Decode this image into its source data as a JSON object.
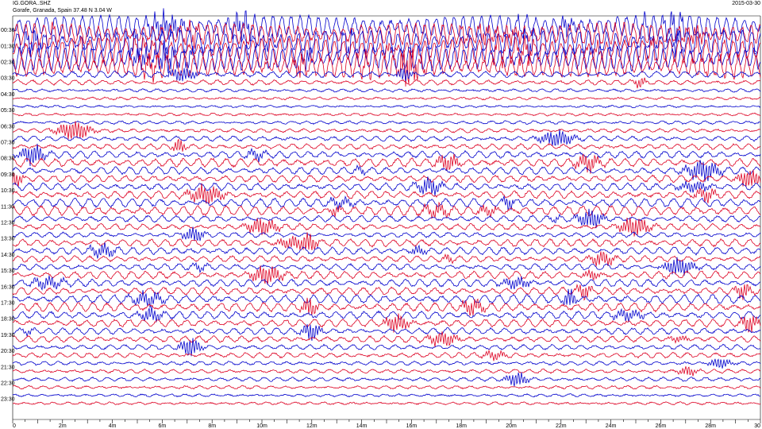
{
  "header": {
    "station_code": "IG.GORA..SHZ",
    "location": "Gorafe, Granada, Spain  37.48 N 3.04 W",
    "date": "2015-03-30"
  },
  "chart_data": {
    "type": "line",
    "title": "",
    "xlabel": "",
    "ylabel": "",
    "xlim": [
      0,
      30
    ],
    "x_unit": "minutes",
    "x_ticks": [
      "0",
      "2m",
      "4m",
      "6m",
      "8m",
      "10m",
      "12m",
      "14m",
      "16m",
      "18m",
      "20m",
      "22m",
      "24m",
      "26m",
      "28m",
      "30"
    ],
    "row_labels": [
      "00:30",
      "01:30",
      "02:30",
      "03:30",
      "04:30",
      "05:30",
      "06:30",
      "07:30",
      "08:30",
      "09:30",
      "10:30",
      "11:30",
      "12:30",
      "13:30",
      "14:30",
      "15:30",
      "16:30",
      "17:30",
      "18:30",
      "19:30",
      "20:30",
      "21:30",
      "22:30",
      "23:30"
    ],
    "traces_per_label": 2,
    "trace_colors": [
      "#0000cc",
      "#dd0022"
    ],
    "trace_count": 48,
    "relative_activity": [
      0.9,
      0.9,
      1.0,
      1.0,
      1.0,
      0.9,
      0.25,
      0.2,
      0.12,
      0.1,
      0.08,
      0.1,
      0.12,
      0.15,
      0.2,
      0.22,
      0.28,
      0.35,
      0.3,
      0.28,
      0.3,
      0.3,
      0.35,
      0.4,
      0.25,
      0.25,
      0.2,
      0.3,
      0.3,
      0.25,
      0.25,
      0.3,
      0.3,
      0.3,
      0.35,
      0.35,
      0.3,
      0.3,
      0.25,
      0.25,
      0.2,
      0.2,
      0.15,
      0.15,
      0.15,
      0.12,
      0.1,
      0.1
    ]
  }
}
